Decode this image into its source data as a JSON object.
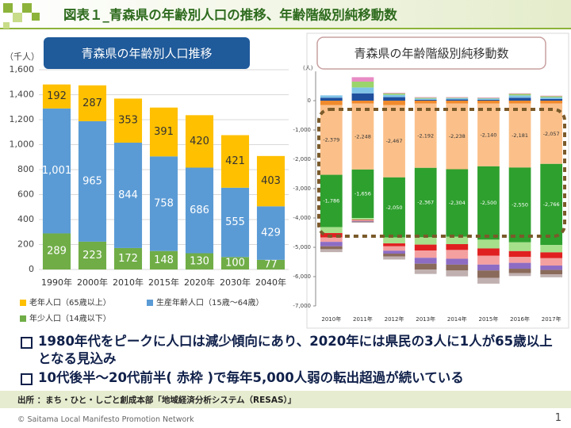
{
  "header": {
    "title": "図表１_青森県の年齢別人口の推移、年齢階級別純移動数"
  },
  "chart_data": [
    {
      "type": "bar",
      "stacked": true,
      "grid": true,
      "title": "青森県の年齢別人口推移",
      "y_label": "（千人）",
      "categories": [
        "1990年",
        "2000年",
        "2010年",
        "2015年",
        "2020年",
        "2030年",
        "2040年"
      ],
      "ylim": [
        0,
        1600
      ],
      "yticks": [
        0,
        200,
        400,
        600,
        800,
        {
          "value": 1000,
          "label": "1,000"
        },
        {
          "value": 1200,
          "label": "1,200"
        },
        {
          "value": 1400,
          "label": "1,400"
        },
        {
          "value": 1600,
          "label": "1,600"
        }
      ],
      "series": [
        {
          "name": "年少人口（14歳以下）",
          "color": "#70ad47",
          "show_labels": true,
          "label_color": "#ffffff",
          "values": [
            289,
            223,
            172,
            148,
            130,
            100,
            77
          ]
        },
        {
          "name": "生産年齢人口（15歳～64歳）",
          "color": "#5b9bd5",
          "show_labels": true,
          "label_color": "#ffffff",
          "values": [
            1001,
            965,
            844,
            758,
            686,
            555,
            429
          ],
          "value_labels": [
            "1,001",
            "965",
            "844",
            "758",
            "686",
            "555",
            "429"
          ]
        },
        {
          "name": "老年人口（65歳以上）",
          "color": "#ffc000",
          "show_labels": true,
          "label_color": "#333333",
          "values": [
            192,
            287,
            353,
            391,
            420,
            421,
            403
          ]
        }
      ]
    },
    {
      "type": "bar",
      "stacked": true,
      "grid": false,
      "title": "青森県の年齢階級別純移動数",
      "y_label": "(人)",
      "categories": [
        "2010年",
        "2011年",
        "2012年",
        "2013年",
        "2014年",
        "2015年",
        "2016年",
        "2017年"
      ],
      "ylim": [
        -7000,
        1000
      ],
      "yticks": [
        0,
        {
          "value": -1000,
          "label": "-1,000"
        },
        {
          "value": -2000,
          "label": "-2,000"
        },
        {
          "value": -3000,
          "label": "-3,000"
        },
        {
          "value": -4000,
          "label": "-4,000"
        },
        {
          "value": -5000,
          "label": "-5,000"
        },
        {
          "value": -6000,
          "label": "-6,000"
        },
        {
          "value": -7000,
          "label": "-7,000"
        }
      ],
      "series": [
        {
          "color": "#1f4e9c",
          "values": [
            100,
            250,
            120,
            30,
            40,
            30,
            100,
            60
          ]
        },
        {
          "color": "#7fc4e8",
          "values": [
            80,
            200,
            80,
            40,
            40,
            40,
            80,
            50
          ]
        },
        {
          "color": "#9bd46a",
          "values": [
            0,
            200,
            50,
            30,
            20,
            20,
            50,
            40
          ]
        },
        {
          "color": "#e88bc4",
          "values": [
            0,
            150,
            20,
            20,
            20,
            20,
            20,
            20
          ]
        },
        {
          "color": "#f08a2c",
          "values": [
            -150,
            -100,
            -150,
            -100,
            -100,
            -100,
            -100,
            -100
          ]
        },
        {
          "color": "#fbc08a",
          "show_labels": true,
          "label_color": "#333333",
          "values": [
            -2379,
            -2248,
            -2467,
            -2192,
            -2238,
            -2140,
            -2181,
            -2057
          ],
          "value_labels": [
            "-2,379",
            "-2,248",
            "-2,467",
            "-2,192",
            "-2,238",
            "-2,140",
            "-2,181",
            "-2,057"
          ]
        },
        {
          "color": "#2ea02e",
          "show_labels": true,
          "label_color": "#ffffff",
          "values": [
            -1786,
            -1656,
            -2050,
            -2367,
            -2304,
            -2500,
            -2550,
            -2766
          ],
          "value_labels": [
            "-1,786",
            "-1,656",
            "-2,050",
            "-2,367",
            "-2,304",
            "-2,500",
            "-2,550",
            "-2,766"
          ]
        },
        {
          "color": "#a6e08a",
          "values": [
            -200,
            -60,
            -200,
            -250,
            -250,
            -300,
            -300,
            -250
          ]
        },
        {
          "color": "#e02020",
          "values": [
            -150,
            -20,
            -100,
            -200,
            -200,
            -250,
            -200,
            -200
          ]
        },
        {
          "color": "#f4a0a0",
          "values": [
            -150,
            -20,
            -150,
            -250,
            -300,
            -300,
            -200,
            -250
          ]
        },
        {
          "color": "#8d6cc4",
          "values": [
            -150,
            -20,
            -100,
            -200,
            -200,
            -200,
            -200,
            -150
          ]
        },
        {
          "color": "#8a6a5a",
          "values": [
            -100,
            -20,
            -100,
            -200,
            -200,
            -250,
            -150,
            -150
          ]
        },
        {
          "color": "#c0b0b0",
          "values": [
            -100,
            -20,
            -100,
            -150,
            -200,
            -200,
            -100,
            -100
          ]
        }
      ]
    }
  ],
  "bullets": [
    "1980年代をピークに人口は減少傾向にあり、2020年には県民の3人に1人が65歳以上となる見込み",
    "10代後半～20代前半( 赤枠 )で毎年5,000人弱の転出超過が続いている"
  ],
  "source": "出所 ：まち・ひと・しごと創成本部「地域経済分析システム（RESAS）」",
  "footer": {
    "copyright": "© Saitama Local Manifesto Promotion Network",
    "page": "1"
  }
}
